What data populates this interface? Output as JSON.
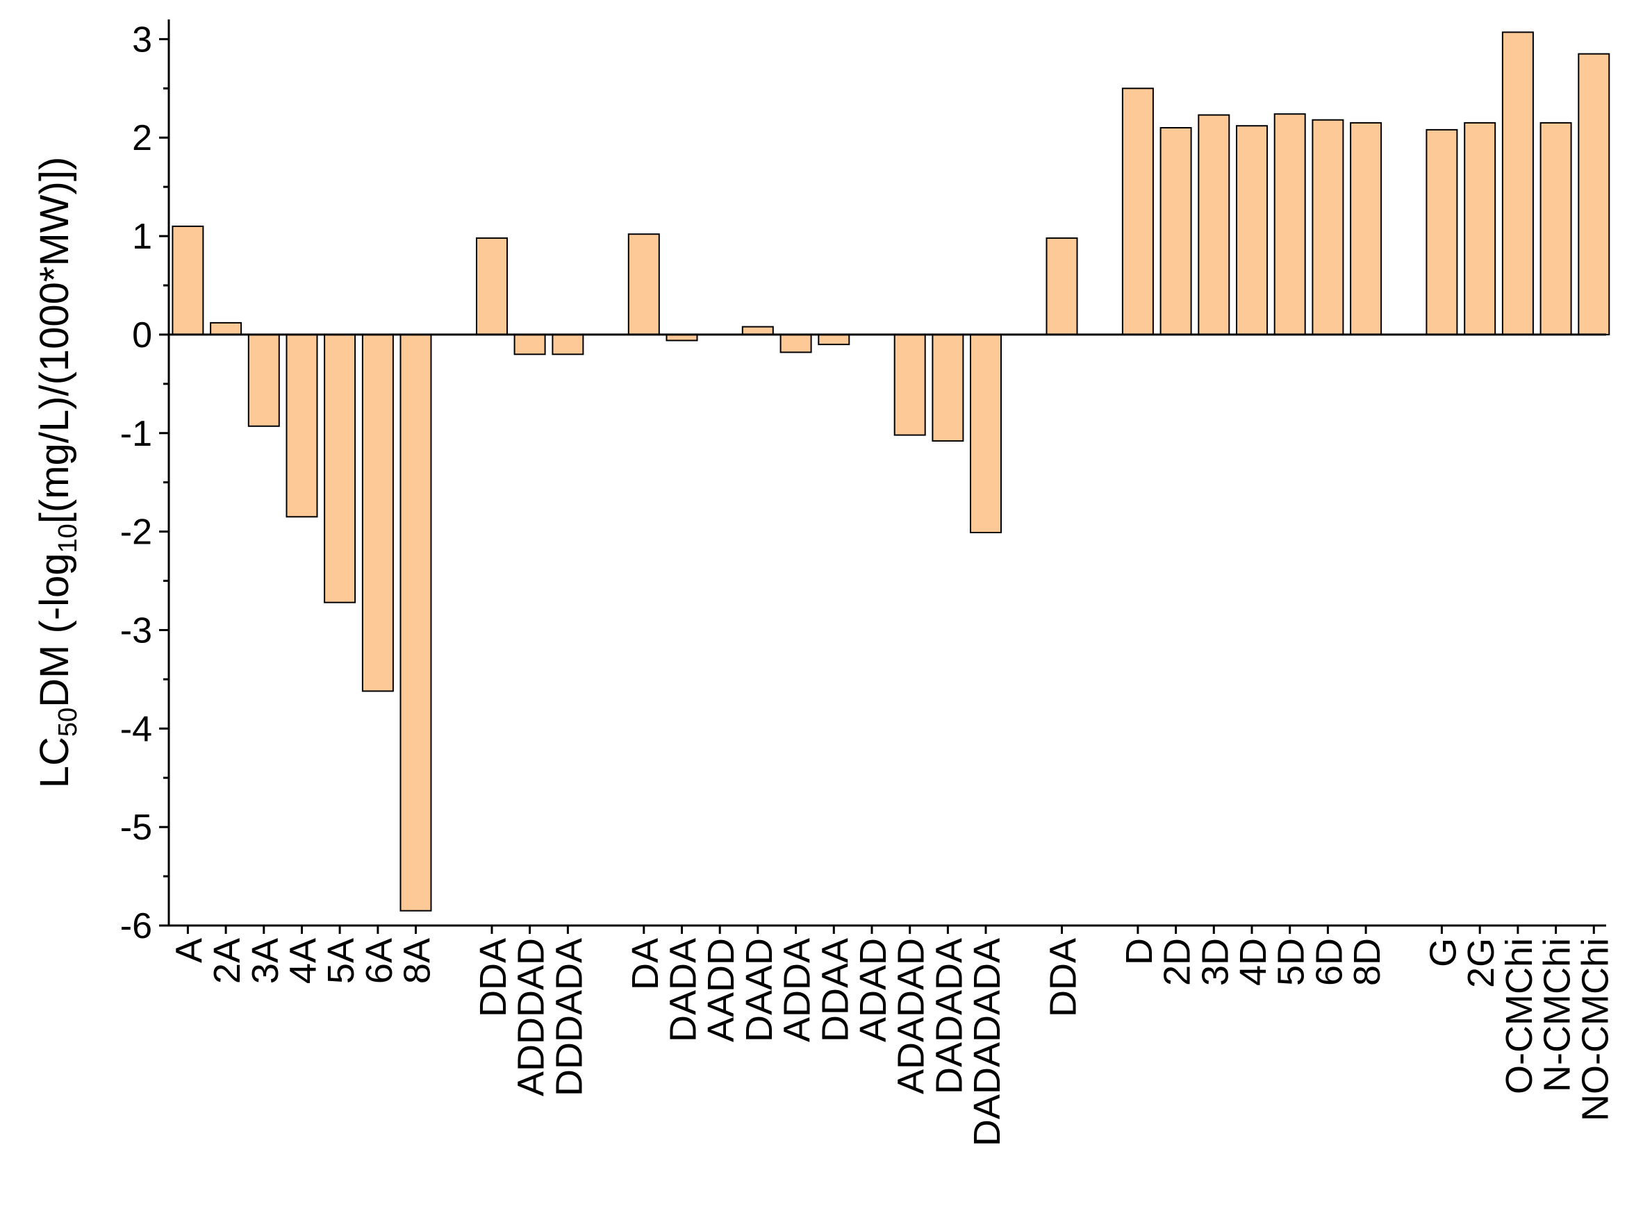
{
  "chart_data": {
    "type": "bar",
    "ylabel": {
      "parts": [
        {
          "text": "LC",
          "sub": false
        },
        {
          "text": "50",
          "sub": true
        },
        {
          "text": "DM (-log",
          "sub": false
        },
        {
          "text": "10",
          "sub": true
        },
        {
          "text": "[(mg/L)/(1000*MW)])",
          "sub": false
        }
      ]
    },
    "ylim": [
      -6,
      3.2
    ],
    "yticks": [
      -6,
      -5,
      -4,
      -3,
      -2,
      -1,
      0,
      1,
      2,
      3
    ],
    "yticks_minor_step": 0.5,
    "bar_color": "#FDC997",
    "categories": [
      {
        "label": "A",
        "value": 1.1,
        "slot": 0
      },
      {
        "label": "2A",
        "value": 0.12,
        "slot": 1
      },
      {
        "label": "3A",
        "value": -0.93,
        "slot": 2
      },
      {
        "label": "4A",
        "value": -1.85,
        "slot": 3
      },
      {
        "label": "5A",
        "value": -2.72,
        "slot": 4
      },
      {
        "label": "6A",
        "value": -3.62,
        "slot": 5
      },
      {
        "label": "8A",
        "value": -5.85,
        "slot": 6
      },
      {
        "label": "DDA",
        "value": 0.98,
        "slot": 8
      },
      {
        "label": "ADDDAD",
        "value": -0.2,
        "slot": 9
      },
      {
        "label": "DDDADA",
        "value": -0.2,
        "slot": 10
      },
      {
        "label": "DA",
        "value": 1.02,
        "slot": 12
      },
      {
        "label": "DADA",
        "value": -0.06,
        "slot": 13
      },
      {
        "label": "AADD",
        "value": 0.0,
        "slot": 14
      },
      {
        "label": "DAAD",
        "value": 0.08,
        "slot": 15
      },
      {
        "label": "ADDA",
        "value": -0.18,
        "slot": 16
      },
      {
        "label": "DDAA",
        "value": -0.1,
        "slot": 17
      },
      {
        "label": "ADAD",
        "value": 0.0,
        "slot": 18
      },
      {
        "label": "ADADAD",
        "value": -1.02,
        "slot": 19
      },
      {
        "label": "DADADA",
        "value": -1.08,
        "slot": 20
      },
      {
        "label": "DADADADA",
        "value": -2.01,
        "slot": 21
      },
      {
        "label": "DDA",
        "value": 0.98,
        "slot": 23
      },
      {
        "label": "D",
        "value": 2.5,
        "slot": 25
      },
      {
        "label": "2D",
        "value": 2.1,
        "slot": 26
      },
      {
        "label": "3D",
        "value": 2.23,
        "slot": 27
      },
      {
        "label": "4D",
        "value": 2.12,
        "slot": 28
      },
      {
        "label": "5D",
        "value": 2.24,
        "slot": 29
      },
      {
        "label": "6D",
        "value": 2.18,
        "slot": 30
      },
      {
        "label": "8D",
        "value": 2.15,
        "slot": 31
      },
      {
        "label": "G",
        "value": 2.08,
        "slot": 33
      },
      {
        "label": "2G",
        "value": 2.15,
        "slot": 34
      },
      {
        "label": "O-CMChi",
        "value": 3.07,
        "slot": 35
      },
      {
        "label": "N-CMChi",
        "value": 2.15,
        "slot": 36
      },
      {
        "label": "NO-CMChi",
        "value": 2.85,
        "slot": 37
      }
    ]
  }
}
